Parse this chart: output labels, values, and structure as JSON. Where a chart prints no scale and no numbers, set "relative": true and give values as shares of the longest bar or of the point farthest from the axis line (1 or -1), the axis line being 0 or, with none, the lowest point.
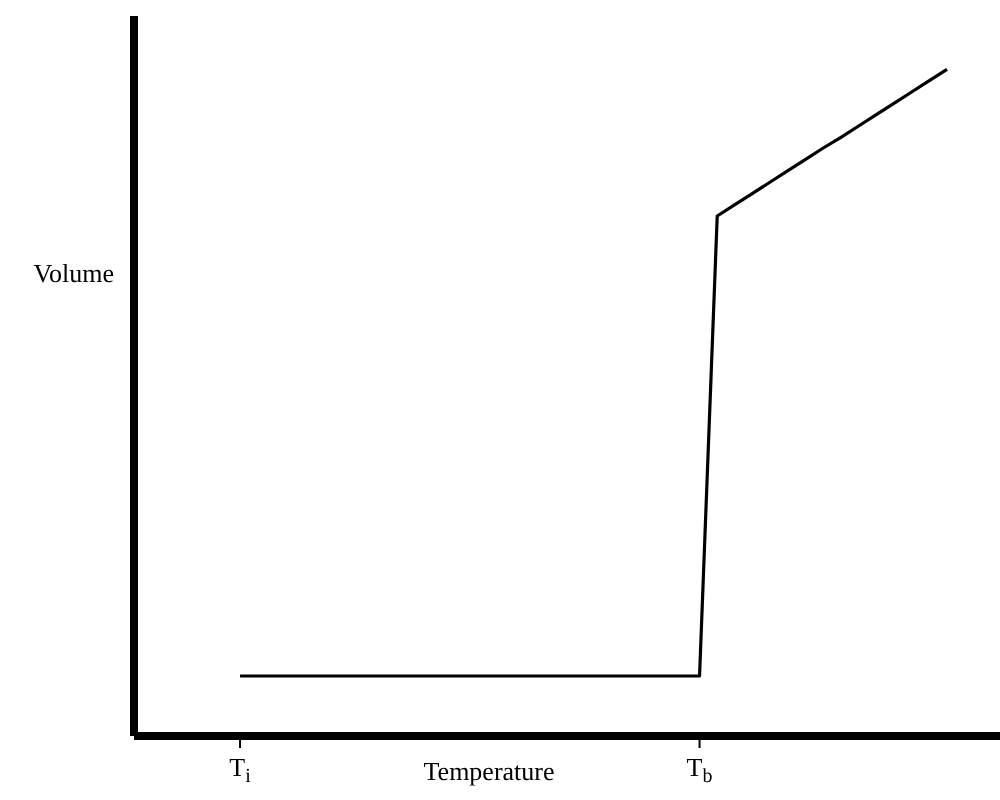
{
  "chart_data": {
    "type": "line",
    "relative": true,
    "xlabel": "Temperature",
    "ylabel": "Volume",
    "categories": [
      null,
      null,
      null,
      null,
      null,
      null,
      "T$_{i}$",
      null,
      null,
      null,
      null,
      null,
      null,
      null,
      null,
      null,
      null,
      null,
      null,
      null,
      null,
      null,
      null,
      null,
      null,
      null,
      null,
      null,
      null,
      null,
      null,
      null,
      "T$_{b}$",
      null,
      null,
      null,
      null,
      null,
      null,
      null,
      null,
      null,
      null,
      null,
      null,
      null,
      null,
      null,
      null,
      null
    ],
    "series": [
      {
        "color": "#000000",
        "values": [
          null,
          null,
          null,
          null,
          null,
          null,
          0.09,
          0.09,
          0.09,
          0.09,
          0.09,
          0.09,
          0.09,
          0.09,
          0.09,
          0.09,
          0.09,
          0.09,
          0.09,
          0.09,
          0.09,
          0.09,
          0.09,
          0.09,
          0.09,
          0.09,
          0.09,
          0.09,
          0.09,
          0.09,
          0.09,
          0.09,
          0.09,
          0.78,
          0.797,
          0.814,
          0.831,
          0.848,
          0.865,
          0.882,
          0.898,
          0.915,
          0.932,
          0.949,
          0.966,
          0.983,
          1,
          null,
          null,
          null
        ]
      }
    ],
    "tick_labels": "x",
    "grid": false,
    "legend": false,
    "marker": "none",
    "line_style": "solid"
  }
}
